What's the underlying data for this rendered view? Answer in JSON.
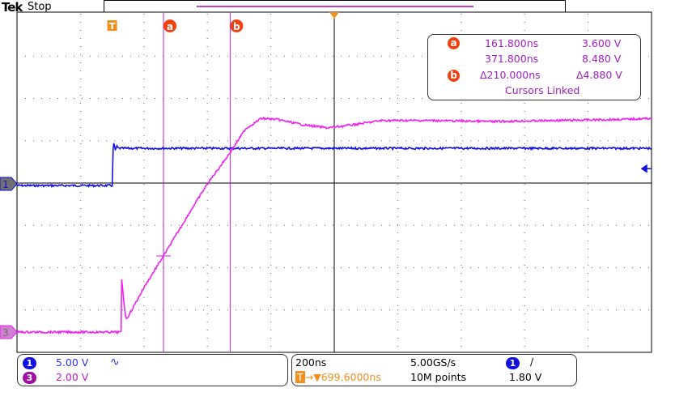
{
  "header": {
    "brand": "Tek",
    "state": "Stop"
  },
  "colors": {
    "ch1": "#1010e0",
    "ch3": "#f020f0",
    "cursor": "#c020d0",
    "trigger": "#f09020",
    "badge": "#f04010"
  },
  "cursors": {
    "a_label": "a",
    "b_label": "b",
    "a_time": "161.800ns",
    "a_value": "3.600 V",
    "b_time": "371.800ns",
    "b_value": "8.480 V",
    "delta_time": "Δ210.000ns",
    "delta_value": "Δ4.880 V",
    "mode": "Cursors Linked"
  },
  "markers": {
    "trigger": "T",
    "ch1": "1",
    "ch3": "3"
  },
  "channels": [
    {
      "id": "1",
      "scale": "5.00 V",
      "coupling_icon": "∿"
    },
    {
      "id": "3",
      "scale": "2.00 V"
    }
  ],
  "horizontal": {
    "timebase": "200ns",
    "sample_rate": "5.00GS/s",
    "trigger_pos": "699.6000ns",
    "trigger_prefix": "→▼",
    "record": "10M points"
  },
  "trigger": {
    "source": "1",
    "slope": "∕",
    "level": "1.80 V"
  },
  "chart_data": {
    "type": "line",
    "xunit": "ns",
    "xlim": [
      -300,
      1700
    ],
    "grid": true,
    "series": [
      {
        "name": "1",
        "scale_v_per_div": 5,
        "x": [
          -300,
          0,
          3,
          5,
          10,
          15,
          20,
          1700
        ],
        "y": [
          -0.2,
          -0.2,
          4.0,
          4.8,
          4.0,
          4.4,
          4.2,
          4.2
        ]
      },
      {
        "name": "3",
        "scale_v_per_div": 2,
        "x": [
          -300,
          28,
          30,
          40,
          45,
          60,
          100,
          161.8,
          250,
          300,
          371.8,
          420,
          470,
          520,
          600,
          680,
          760,
          850,
          1000,
          1200,
          1400,
          1600,
          1700
        ],
        "y": [
          0,
          0,
          2.5,
          1.0,
          0.6,
          1.0,
          2.1,
          3.6,
          5.8,
          7.0,
          8.48,
          9.6,
          10.1,
          10.05,
          9.8,
          9.65,
          9.8,
          10.0,
          10.0,
          9.95,
          10.0,
          10.05,
          10.1
        ]
      }
    ],
    "cursor_a_ns": 161.8,
    "cursor_b_ns": 371.8
  }
}
